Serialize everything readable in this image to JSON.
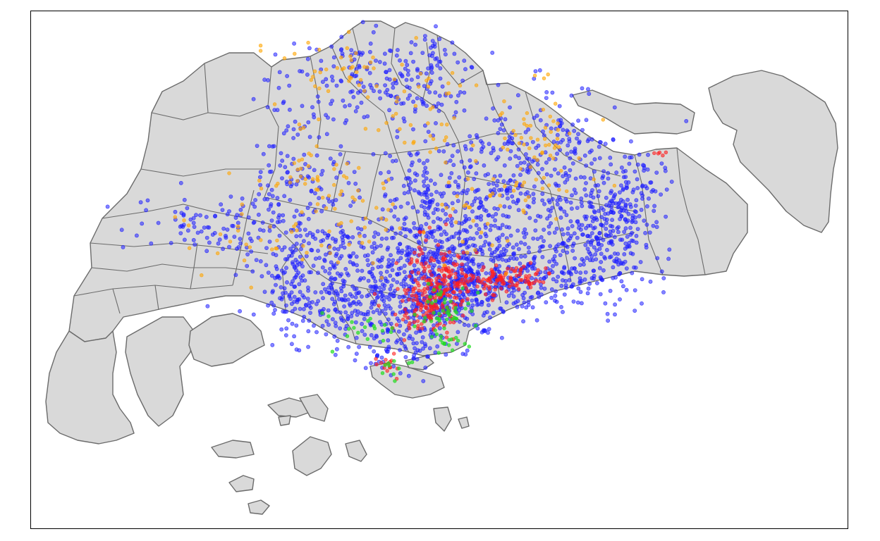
{
  "map": {
    "kind": "point-density map over planning-area boundaries",
    "colors": {
      "land": "#d9d9d9",
      "boundary": "#6b6b6b",
      "frame": "#000000",
      "water": "#ffffff"
    },
    "point_categories": [
      {
        "id": "blue",
        "color": "#1f1fff",
        "opacity": 0.55
      },
      {
        "id": "red",
        "color": "#ff1f1f",
        "opacity": 0.6
      },
      {
        "id": "orange",
        "color": "#ffa500",
        "opacity": 0.6
      },
      {
        "id": "green",
        "color": "#22dd22",
        "opacity": 0.7
      }
    ]
  }
}
